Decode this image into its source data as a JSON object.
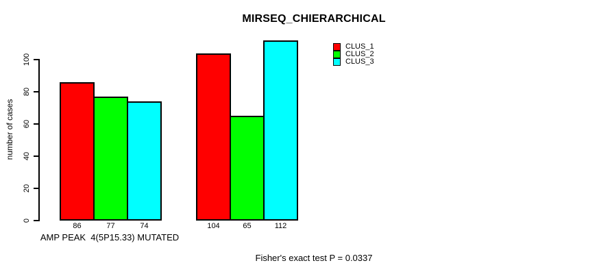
{
  "chart_data": {
    "type": "bar",
    "title": "MIRSEQ_CHIERARCHICAL",
    "ylabel": "number of cases",
    "yticks": [
      0,
      20,
      40,
      60,
      80,
      100
    ],
    "ylim": [
      0,
      115
    ],
    "grid": false,
    "legend_position": "top-right-outside",
    "categories": [
      "AMP PEAK  4(5P15.33) MUTATED",
      ""
    ],
    "series": [
      {
        "name": "CLUS_1",
        "color": "#ff0000",
        "values": [
          86,
          104
        ]
      },
      {
        "name": "CLUS_2",
        "color": "#00ff00",
        "values": [
          77,
          65
        ]
      },
      {
        "name": "CLUS_3",
        "color": "#00ffff",
        "values": [
          74,
          112
        ]
      }
    ],
    "annotation": "Fisher's exact test P = 0.0337"
  },
  "colors": {
    "background": "#ffffff",
    "axis": "#000000",
    "text": "#000000"
  }
}
